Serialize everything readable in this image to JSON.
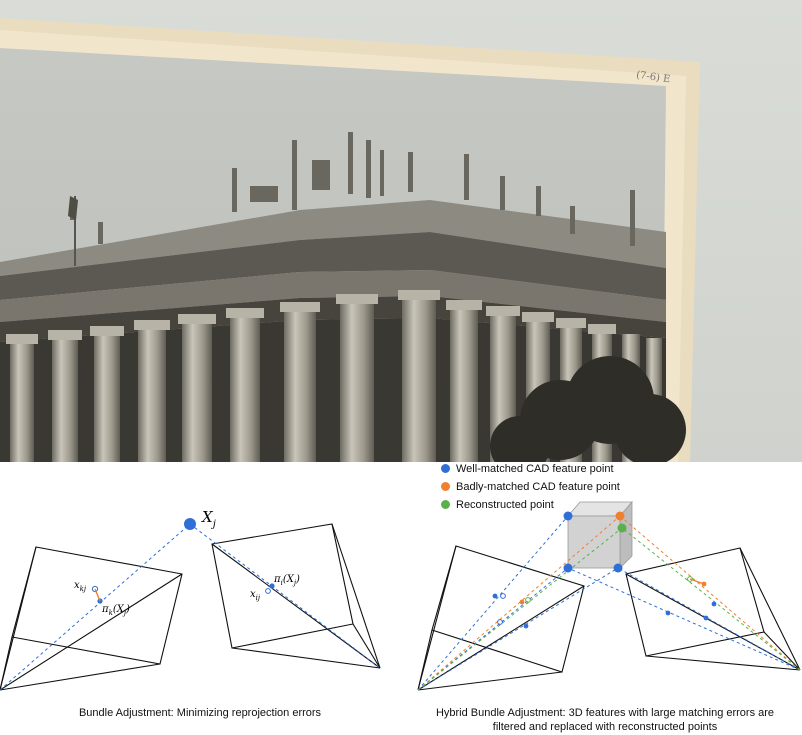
{
  "photo": {
    "handwritten_note": "(7-6) E"
  },
  "legend": {
    "items": [
      {
        "label": "Well-matched CAD feature point",
        "color": "#2f6fd6"
      },
      {
        "label": "Badly-matched CAD feature point",
        "color": "#f07f2e"
      },
      {
        "label": "Reconstructed point",
        "color": "#5ab04a"
      }
    ]
  },
  "left_diagram": {
    "point_label": "X",
    "point_subscript": "j",
    "labels": [
      "x",
      "kj",
      "π",
      "k",
      "(X",
      "j",
      ")",
      "π",
      "i",
      "(X",
      "j",
      ")",
      "x",
      "ij"
    ],
    "caption": "Bundle Adjustment: Minimizing reprojection errors"
  },
  "right_diagram": {
    "caption_line1": "Hybrid Bundle Adjustment: 3D features with large matching errors are",
    "caption_line2": "filtered and replaced with reconstructed points"
  },
  "colors": {
    "ray_blue": "#2f6fd6",
    "ray_orange": "#f07f2e",
    "ray_green": "#5ab04a",
    "frame": "#111111"
  }
}
